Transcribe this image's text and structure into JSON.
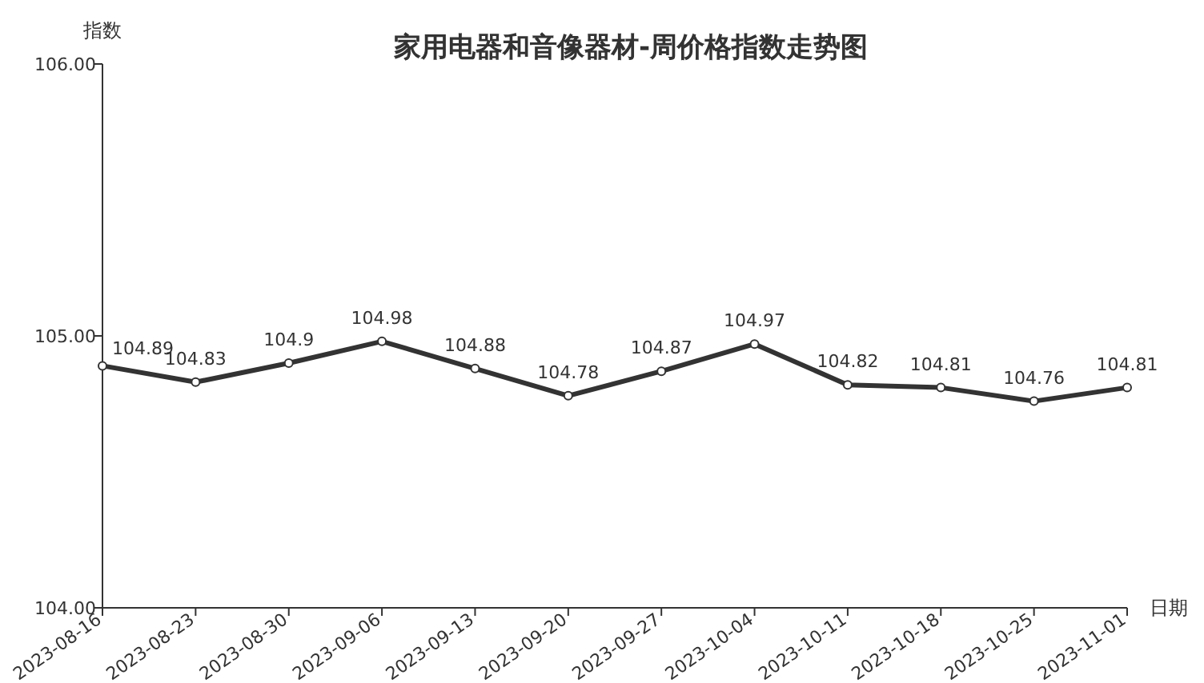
{
  "chart_data": {
    "type": "line",
    "title": "家用电器和音像器材-周价格指数走势图",
    "ylabel": "指数",
    "xlabel": "日期",
    "categories": [
      "2023-08-16",
      "2023-08-23",
      "2023-08-30",
      "2023-09-06",
      "2023-09-13",
      "2023-09-20",
      "2023-09-27",
      "2023-10-04",
      "2023-10-11",
      "2023-10-18",
      "2023-10-25",
      "2023-11-01"
    ],
    "series": [
      {
        "color": "#333333",
        "values": [
          104.89,
          104.83,
          104.9,
          104.98,
          104.88,
          104.78,
          104.87,
          104.97,
          104.82,
          104.81,
          104.76,
          104.81
        ]
      }
    ],
    "ylim": [
      104,
      106
    ],
    "yticks": [
      {
        "value": 104,
        "label": "104.00"
      },
      {
        "value": 105,
        "label": "105.00"
      },
      {
        "value": 106,
        "label": "106.00"
      }
    ],
    "data_labels": true,
    "marker": "circle",
    "line_style": "solid",
    "grid": false
  }
}
